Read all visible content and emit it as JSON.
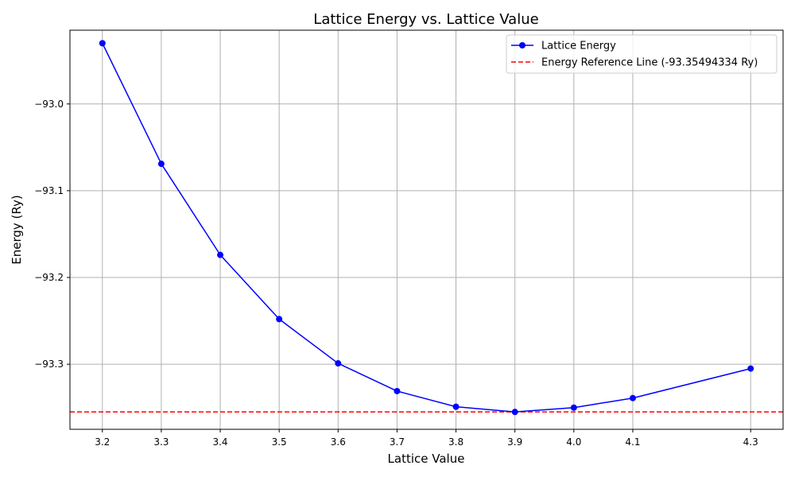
{
  "chart_data": {
    "type": "line",
    "title": "Lattice Energy vs. Lattice Value",
    "xlabel": "Lattice Value",
    "ylabel": "Energy (Ry)",
    "xlim": [
      3.145,
      4.355
    ],
    "ylim": [
      -93.375,
      -92.915
    ],
    "x_ticks": [
      3.2,
      3.3,
      3.4,
      3.5,
      3.6,
      3.7,
      3.8,
      3.9,
      4.0,
      4.1,
      4.3
    ],
    "y_ticks": [
      -93.0,
      -93.1,
      -93.2,
      -93.3
    ],
    "x_tick_labels": [
      "3.2",
      "3.3",
      "3.4",
      "3.5",
      "3.6",
      "3.7",
      "3.8",
      "3.9",
      "4.0",
      "4.1",
      "4.3"
    ],
    "y_tick_labels": [
      "−93.0",
      "−93.1",
      "−93.2",
      "−93.3"
    ],
    "grid": true,
    "legend_position": "top-right",
    "series": [
      {
        "name": "Lattice Energy",
        "color": "#0000ff",
        "marker": "circle",
        "x": [
          3.2,
          3.3,
          3.4,
          3.5,
          3.6,
          3.7,
          3.8,
          3.9,
          4.0,
          4.1,
          4.3
        ],
        "y": [
          -92.93,
          -93.069,
          -93.174,
          -93.248,
          -93.299,
          -93.331,
          -93.349,
          -93.355,
          -93.35,
          -93.339,
          -93.305
        ]
      }
    ],
    "reference_line": {
      "name": "Energy Reference Line (-93.35494334 Ry)",
      "y": -93.35494334,
      "color": "#ff0000",
      "style": "dashed"
    }
  }
}
